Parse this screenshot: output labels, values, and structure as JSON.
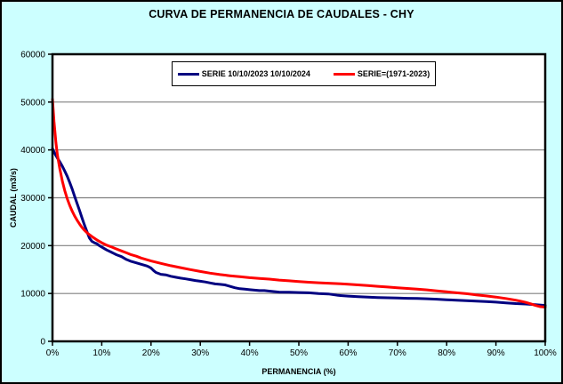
{
  "window": {
    "background_color": "#CCFFFF",
    "border_color": "#000000"
  },
  "chart_data": {
    "type": "line",
    "title": "CURVA DE PERMANENCIA DE CAUDALES - CHY",
    "xlabel": "PERMANENCIA (%)",
    "ylabel": "CAUDAL (m3/s)",
    "xlim": [
      0,
      100
    ],
    "ylim": [
      0,
      60000
    ],
    "x_ticks": [
      0,
      10,
      20,
      30,
      40,
      50,
      60,
      70,
      80,
      90,
      100
    ],
    "x_tick_labels": [
      "0%",
      "10%",
      "20%",
      "30%",
      "40%",
      "50%",
      "60%",
      "70%",
      "80%",
      "90%",
      "100%"
    ],
    "y_ticks": [
      0,
      10000,
      20000,
      30000,
      40000,
      50000,
      60000
    ],
    "y_tick_labels": [
      "0",
      "10000",
      "20000",
      "30000",
      "40000",
      "50000",
      "60000"
    ],
    "grid": "horizontal-only",
    "gridline_color": "#808080",
    "plot_background": "#FFFFFF",
    "axis_color": "#000000",
    "legend_position": "top-center-inside",
    "series": [
      {
        "name": "SERIE 10/10/2023 10/10/2024",
        "color": "#000080",
        "points": [
          [
            0,
            40300
          ],
          [
            0.3,
            39600
          ],
          [
            0.6,
            39000
          ],
          [
            1,
            38300
          ],
          [
            1.5,
            37500
          ],
          [
            2,
            36600
          ],
          [
            2.5,
            35600
          ],
          [
            3,
            34500
          ],
          [
            3.5,
            33200
          ],
          [
            4,
            31800
          ],
          [
            4.5,
            30300
          ],
          [
            5,
            28800
          ],
          [
            5.5,
            27300
          ],
          [
            6,
            25800
          ],
          [
            6.5,
            24300
          ],
          [
            7,
            22900
          ],
          [
            7.5,
            21600
          ],
          [
            8,
            20900
          ],
          [
            8.5,
            20600
          ],
          [
            9,
            20400
          ],
          [
            9.5,
            20000
          ],
          [
            10,
            19700
          ],
          [
            11,
            19100
          ],
          [
            12,
            18600
          ],
          [
            13,
            18100
          ],
          [
            14,
            17700
          ],
          [
            15,
            17100
          ],
          [
            16,
            16700
          ],
          [
            17,
            16400
          ],
          [
            18,
            16100
          ],
          [
            19,
            15800
          ],
          [
            19.5,
            15600
          ],
          [
            20,
            15300
          ],
          [
            20.5,
            14800
          ],
          [
            21,
            14400
          ],
          [
            22,
            14000
          ],
          [
            23,
            13900
          ],
          [
            24,
            13600
          ],
          [
            25,
            13400
          ],
          [
            26,
            13200
          ],
          [
            27,
            13050
          ],
          [
            28,
            12900
          ],
          [
            29,
            12700
          ],
          [
            30,
            12550
          ],
          [
            31,
            12400
          ],
          [
            32,
            12200
          ],
          [
            33,
            12000
          ],
          [
            34,
            11900
          ],
          [
            35,
            11800
          ],
          [
            36,
            11500
          ],
          [
            37,
            11200
          ],
          [
            38,
            11000
          ],
          [
            39,
            10900
          ],
          [
            40,
            10800
          ],
          [
            41,
            10700
          ],
          [
            42,
            10600
          ],
          [
            43,
            10600
          ],
          [
            44,
            10500
          ],
          [
            46,
            10300
          ],
          [
            48,
            10250
          ],
          [
            50,
            10200
          ],
          [
            52,
            10150
          ],
          [
            54,
            10000
          ],
          [
            56,
            9900
          ],
          [
            58,
            9600
          ],
          [
            60,
            9450
          ],
          [
            62,
            9350
          ],
          [
            64,
            9250
          ],
          [
            66,
            9150
          ],
          [
            68,
            9100
          ],
          [
            70,
            9050
          ],
          [
            72,
            9000
          ],
          [
            74,
            8950
          ],
          [
            76,
            8900
          ],
          [
            78,
            8800
          ],
          [
            80,
            8700
          ],
          [
            82,
            8600
          ],
          [
            84,
            8500
          ],
          [
            86,
            8400
          ],
          [
            88,
            8300
          ],
          [
            90,
            8200
          ],
          [
            92,
            8050
          ],
          [
            94,
            7900
          ],
          [
            96,
            7800
          ],
          [
            98,
            7650
          ],
          [
            100,
            7500
          ]
        ]
      },
      {
        "name": "SERIE=(1971-2023)",
        "color": "#FF0000",
        "points": [
          [
            0,
            50600
          ],
          [
            0.3,
            46000
          ],
          [
            0.7,
            41500
          ],
          [
            1,
            39000
          ],
          [
            1.5,
            36000
          ],
          [
            2,
            33500
          ],
          [
            2.5,
            31500
          ],
          [
            3,
            29800
          ],
          [
            3.5,
            28400
          ],
          [
            4,
            27200
          ],
          [
            4.5,
            26200
          ],
          [
            5,
            25300
          ],
          [
            5.5,
            24500
          ],
          [
            6,
            23800
          ],
          [
            6.5,
            23200
          ],
          [
            7,
            22700
          ],
          [
            7.5,
            22300
          ],
          [
            8,
            21900
          ],
          [
            9,
            21200
          ],
          [
            10,
            20600
          ],
          [
            11,
            20100
          ],
          [
            12,
            19700
          ],
          [
            13,
            19300
          ],
          [
            14,
            18900
          ],
          [
            15,
            18500
          ],
          [
            16,
            18100
          ],
          [
            17,
            17800
          ],
          [
            18,
            17400
          ],
          [
            19,
            17100
          ],
          [
            20,
            16800
          ],
          [
            22,
            16300
          ],
          [
            24,
            15800
          ],
          [
            26,
            15400
          ],
          [
            28,
            15000
          ],
          [
            30,
            14600
          ],
          [
            32,
            14250
          ],
          [
            34,
            13950
          ],
          [
            36,
            13700
          ],
          [
            38,
            13500
          ],
          [
            40,
            13300
          ],
          [
            42,
            13150
          ],
          [
            44,
            13000
          ],
          [
            46,
            12800
          ],
          [
            48,
            12650
          ],
          [
            50,
            12500
          ],
          [
            52,
            12350
          ],
          [
            54,
            12250
          ],
          [
            56,
            12150
          ],
          [
            58,
            12050
          ],
          [
            60,
            11950
          ],
          [
            62,
            11800
          ],
          [
            64,
            11650
          ],
          [
            66,
            11500
          ],
          [
            68,
            11350
          ],
          [
            70,
            11200
          ],
          [
            72,
            11050
          ],
          [
            74,
            10900
          ],
          [
            76,
            10750
          ],
          [
            78,
            10550
          ],
          [
            80,
            10350
          ],
          [
            82,
            10150
          ],
          [
            84,
            9950
          ],
          [
            85,
            9850
          ],
          [
            86,
            9700
          ],
          [
            88,
            9500
          ],
          [
            90,
            9250
          ],
          [
            92,
            8950
          ],
          [
            94,
            8600
          ],
          [
            95,
            8400
          ],
          [
            96,
            8150
          ],
          [
            97,
            7850
          ],
          [
            98,
            7500
          ],
          [
            99,
            7250
          ],
          [
            100,
            7150
          ]
        ]
      }
    ]
  }
}
